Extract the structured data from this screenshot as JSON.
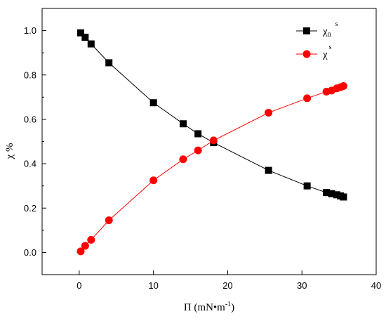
{
  "chart_data": {
    "type": "line",
    "xlabel": "Π (mN•m",
    "xlabel_sup": "-1",
    "xlabel_close": ")",
    "ylabel": "χ %",
    "xlim": [
      -5,
      40
    ],
    "ylim": [
      -0.1,
      1.1
    ],
    "xticks": [
      0,
      10,
      20,
      30,
      40
    ],
    "yticks": [
      0.0,
      0.2,
      0.4,
      0.6,
      0.8,
      1.0
    ],
    "xtick_labels": [
      "0",
      "10",
      "20",
      "30",
      "40"
    ],
    "ytick_labels": [
      "0.0",
      "0.2",
      "0.4",
      "0.6",
      "0.8",
      "1.0"
    ],
    "grid": false,
    "legend_position": "top-right",
    "series": [
      {
        "name": "χ",
        "name_sub": "0",
        "name_sup": "s",
        "color": "#000000",
        "marker": "square",
        "x": [
          0.2,
          0.8,
          1.6,
          4.0,
          10.0,
          14.0,
          16.0,
          18.1,
          25.5,
          30.7,
          33.3,
          34.0,
          34.7,
          35.2,
          35.6
        ],
        "y": [
          0.99,
          0.97,
          0.94,
          0.855,
          0.675,
          0.58,
          0.535,
          0.495,
          0.37,
          0.3,
          0.27,
          0.265,
          0.26,
          0.255,
          0.25
        ]
      },
      {
        "name": "χ",
        "name_sup": "s",
        "color": "#ff0000",
        "marker": "circle",
        "x": [
          0.2,
          0.8,
          1.6,
          4.0,
          10.0,
          14.0,
          16.0,
          18.1,
          25.5,
          30.7,
          33.3,
          34.0,
          34.7,
          35.2,
          35.6
        ],
        "y": [
          0.005,
          0.03,
          0.057,
          0.145,
          0.325,
          0.42,
          0.46,
          0.505,
          0.63,
          0.695,
          0.725,
          0.73,
          0.74,
          0.745,
          0.75
        ]
      }
    ]
  }
}
